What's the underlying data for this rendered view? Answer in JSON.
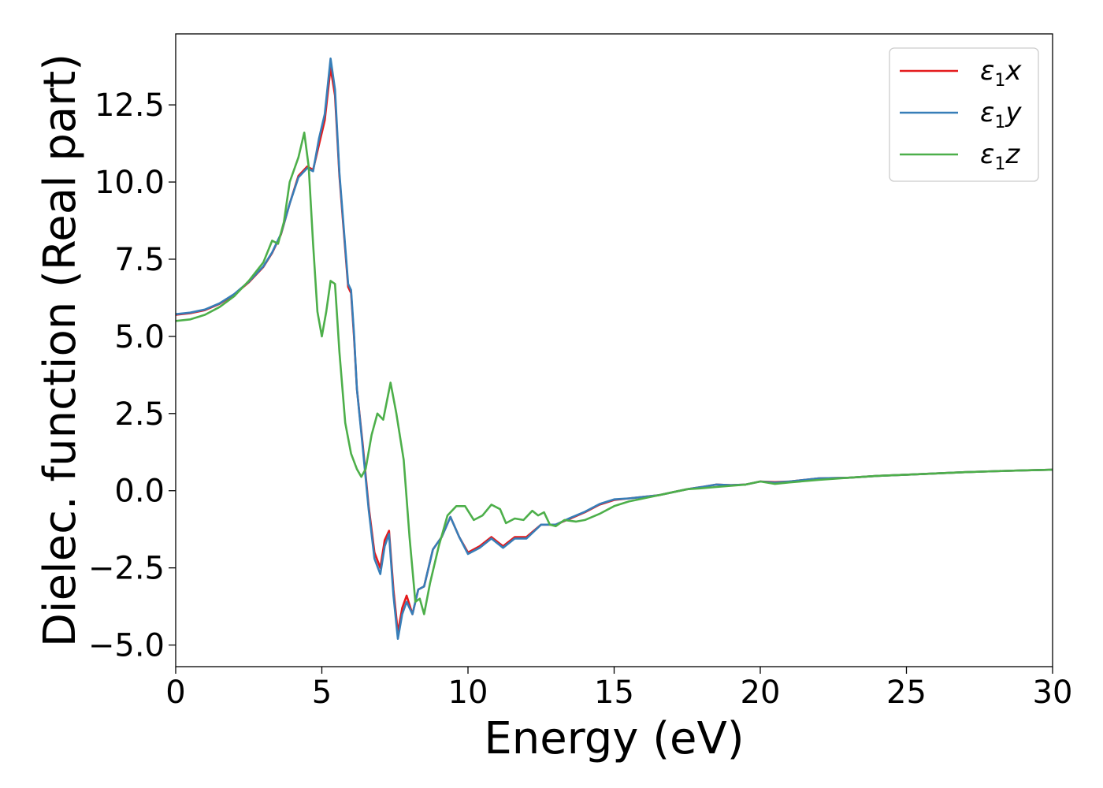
{
  "chart_data": {
    "type": "line",
    "xlabel": "Energy (eV)",
    "ylabel": "Dielec. function (Real part)",
    "xlim": [
      0,
      30
    ],
    "ylim": [
      -5.7,
      14.8
    ],
    "xticks": [
      0,
      5,
      10,
      15,
      20,
      25,
      30
    ],
    "xtick_labels": [
      "0",
      "5",
      "10",
      "15",
      "20",
      "25",
      "30"
    ],
    "yticks": [
      -5.0,
      -2.5,
      0.0,
      2.5,
      5.0,
      7.5,
      10.0,
      12.5
    ],
    "ytick_labels": [
      "−5.0",
      "−2.5",
      "0.0",
      "2.5",
      "5.0",
      "7.5",
      "10.0",
      "12.5"
    ],
    "grid": false,
    "legend_position": "top-right",
    "series": [
      {
        "name": "ε1x",
        "legend_base": "ε",
        "legend_sub": "1",
        "legend_var": "x",
        "color": "#e41a1c",
        "points": [
          [
            0,
            5.7
          ],
          [
            0.5,
            5.75
          ],
          [
            1,
            5.85
          ],
          [
            1.5,
            6.05
          ],
          [
            2,
            6.35
          ],
          [
            2.5,
            6.75
          ],
          [
            3,
            7.25
          ],
          [
            3.3,
            7.7
          ],
          [
            3.6,
            8.3
          ],
          [
            3.9,
            9.3
          ],
          [
            4.2,
            10.2
          ],
          [
            4.5,
            10.5
          ],
          [
            4.7,
            10.4
          ],
          [
            4.9,
            11.2
          ],
          [
            5.1,
            12.0
          ],
          [
            5.3,
            13.7
          ],
          [
            5.45,
            12.8
          ],
          [
            5.6,
            10.2
          ],
          [
            5.8,
            7.8
          ],
          [
            5.9,
            6.6
          ],
          [
            6.0,
            6.4
          ],
          [
            6.1,
            5.0
          ],
          [
            6.2,
            3.3
          ],
          [
            6.4,
            1.5
          ],
          [
            6.6,
            -0.5
          ],
          [
            6.8,
            -2.0
          ],
          [
            7.0,
            -2.5
          ],
          [
            7.15,
            -1.6
          ],
          [
            7.3,
            -1.3
          ],
          [
            7.45,
            -3.2
          ],
          [
            7.6,
            -4.6
          ],
          [
            7.75,
            -3.8
          ],
          [
            7.9,
            -3.4
          ],
          [
            8.1,
            -4.0
          ],
          [
            8.3,
            -3.2
          ],
          [
            8.5,
            -3.1
          ],
          [
            8.8,
            -1.9
          ],
          [
            9.1,
            -1.5
          ],
          [
            9.4,
            -0.85
          ],
          [
            9.7,
            -1.5
          ],
          [
            10.0,
            -2.0
          ],
          [
            10.4,
            -1.8
          ],
          [
            10.8,
            -1.5
          ],
          [
            11.2,
            -1.8
          ],
          [
            11.6,
            -1.5
          ],
          [
            12.0,
            -1.5
          ],
          [
            12.5,
            -1.1
          ],
          [
            13.0,
            -1.1
          ],
          [
            13.5,
            -0.9
          ],
          [
            14.0,
            -0.7
          ],
          [
            14.5,
            -0.45
          ],
          [
            15.0,
            -0.3
          ],
          [
            15.5,
            -0.25
          ],
          [
            16.0,
            -0.2
          ],
          [
            16.5,
            -0.15
          ],
          [
            17.0,
            -0.05
          ],
          [
            17.5,
            0.05
          ],
          [
            18.0,
            0.12
          ],
          [
            18.5,
            0.2
          ],
          [
            19.0,
            0.18
          ],
          [
            19.5,
            0.2
          ],
          [
            20.0,
            0.3
          ],
          [
            20.5,
            0.28
          ],
          [
            21.0,
            0.3
          ],
          [
            22.0,
            0.4
          ],
          [
            23.0,
            0.42
          ],
          [
            24.0,
            0.48
          ],
          [
            25.0,
            0.52
          ],
          [
            26.0,
            0.56
          ],
          [
            27.0,
            0.6
          ],
          [
            28.0,
            0.63
          ],
          [
            29.0,
            0.66
          ],
          [
            30.0,
            0.68
          ]
        ]
      },
      {
        "name": "ε1y",
        "legend_base": "ε",
        "legend_sub": "1",
        "legend_var": "y",
        "color": "#377eb8",
        "points": [
          [
            0,
            5.72
          ],
          [
            0.5,
            5.77
          ],
          [
            1,
            5.87
          ],
          [
            1.5,
            6.07
          ],
          [
            2,
            6.37
          ],
          [
            2.5,
            6.77
          ],
          [
            3,
            7.27
          ],
          [
            3.3,
            7.72
          ],
          [
            3.6,
            8.32
          ],
          [
            3.9,
            9.3
          ],
          [
            4.2,
            10.15
          ],
          [
            4.5,
            10.45
          ],
          [
            4.7,
            10.35
          ],
          [
            4.9,
            11.4
          ],
          [
            5.1,
            12.2
          ],
          [
            5.3,
            14.0
          ],
          [
            5.45,
            13.0
          ],
          [
            5.6,
            10.3
          ],
          [
            5.8,
            7.9
          ],
          [
            5.9,
            6.7
          ],
          [
            6.0,
            6.5
          ],
          [
            6.1,
            5.1
          ],
          [
            6.2,
            3.3
          ],
          [
            6.4,
            1.4
          ],
          [
            6.6,
            -0.6
          ],
          [
            6.8,
            -2.2
          ],
          [
            7.0,
            -2.7
          ],
          [
            7.15,
            -1.8
          ],
          [
            7.3,
            -1.4
          ],
          [
            7.45,
            -3.4
          ],
          [
            7.6,
            -4.8
          ],
          [
            7.75,
            -4.0
          ],
          [
            7.9,
            -3.6
          ],
          [
            8.1,
            -4.0
          ],
          [
            8.3,
            -3.2
          ],
          [
            8.5,
            -3.1
          ],
          [
            8.8,
            -1.9
          ],
          [
            9.1,
            -1.5
          ],
          [
            9.4,
            -0.85
          ],
          [
            9.7,
            -1.5
          ],
          [
            10.0,
            -2.05
          ],
          [
            10.4,
            -1.85
          ],
          [
            10.8,
            -1.55
          ],
          [
            11.2,
            -1.85
          ],
          [
            11.6,
            -1.55
          ],
          [
            12.0,
            -1.55
          ],
          [
            12.5,
            -1.1
          ],
          [
            13.0,
            -1.1
          ],
          [
            13.5,
            -0.88
          ],
          [
            14.0,
            -0.68
          ],
          [
            14.5,
            -0.43
          ],
          [
            15.0,
            -0.28
          ],
          [
            15.5,
            -0.25
          ],
          [
            16.0,
            -0.2
          ],
          [
            16.5,
            -0.15
          ],
          [
            17.0,
            -0.05
          ],
          [
            17.5,
            0.05
          ],
          [
            18.0,
            0.12
          ],
          [
            18.5,
            0.2
          ],
          [
            19.0,
            0.18
          ],
          [
            19.5,
            0.2
          ],
          [
            20.0,
            0.3
          ],
          [
            20.5,
            0.26
          ],
          [
            21.0,
            0.3
          ],
          [
            22.0,
            0.4
          ],
          [
            23.0,
            0.42
          ],
          [
            24.0,
            0.48
          ],
          [
            25.0,
            0.52
          ],
          [
            26.0,
            0.56
          ],
          [
            27.0,
            0.6
          ],
          [
            28.0,
            0.63
          ],
          [
            29.0,
            0.66
          ],
          [
            30.0,
            0.68
          ]
        ]
      },
      {
        "name": "ε1z",
        "legend_base": "ε",
        "legend_sub": "1",
        "legend_var": "z",
        "color": "#4daf4a",
        "points": [
          [
            0,
            5.5
          ],
          [
            0.5,
            5.55
          ],
          [
            1,
            5.7
          ],
          [
            1.5,
            5.95
          ],
          [
            2,
            6.3
          ],
          [
            2.5,
            6.8
          ],
          [
            3,
            7.4
          ],
          [
            3.3,
            8.1
          ],
          [
            3.5,
            8.0
          ],
          [
            3.7,
            8.7
          ],
          [
            3.9,
            10.0
          ],
          [
            4.2,
            10.8
          ],
          [
            4.4,
            11.6
          ],
          [
            4.55,
            10.5
          ],
          [
            4.7,
            8.0
          ],
          [
            4.85,
            5.8
          ],
          [
            5.0,
            5.0
          ],
          [
            5.15,
            5.8
          ],
          [
            5.3,
            6.8
          ],
          [
            5.45,
            6.7
          ],
          [
            5.6,
            4.5
          ],
          [
            5.8,
            2.2
          ],
          [
            6.0,
            1.2
          ],
          [
            6.2,
            0.7
          ],
          [
            6.35,
            0.45
          ],
          [
            6.5,
            0.7
          ],
          [
            6.7,
            1.8
          ],
          [
            6.9,
            2.5
          ],
          [
            7.1,
            2.3
          ],
          [
            7.35,
            3.5
          ],
          [
            7.55,
            2.5
          ],
          [
            7.8,
            1.0
          ],
          [
            8.0,
            -1.5
          ],
          [
            8.2,
            -3.6
          ],
          [
            8.35,
            -3.5
          ],
          [
            8.5,
            -4.0
          ],
          [
            8.7,
            -3.0
          ],
          [
            9.0,
            -1.8
          ],
          [
            9.3,
            -0.8
          ],
          [
            9.6,
            -0.5
          ],
          [
            9.9,
            -0.5
          ],
          [
            10.2,
            -0.95
          ],
          [
            10.5,
            -0.8
          ],
          [
            10.8,
            -0.45
          ],
          [
            11.1,
            -0.6
          ],
          [
            11.3,
            -1.05
          ],
          [
            11.6,
            -0.9
          ],
          [
            11.9,
            -0.95
          ],
          [
            12.2,
            -0.65
          ],
          [
            12.4,
            -0.8
          ],
          [
            12.6,
            -0.7
          ],
          [
            12.8,
            -1.1
          ],
          [
            13.0,
            -1.15
          ],
          [
            13.3,
            -0.95
          ],
          [
            13.7,
            -1.0
          ],
          [
            14.0,
            -0.95
          ],
          [
            14.5,
            -0.75
          ],
          [
            15.0,
            -0.5
          ],
          [
            15.5,
            -0.35
          ],
          [
            16.0,
            -0.25
          ],
          [
            16.5,
            -0.15
          ],
          [
            17.0,
            -0.05
          ],
          [
            17.5,
            0.05
          ],
          [
            18.0,
            0.08
          ],
          [
            18.5,
            0.12
          ],
          [
            19.0,
            0.16
          ],
          [
            19.5,
            0.2
          ],
          [
            20.0,
            0.3
          ],
          [
            20.5,
            0.22
          ],
          [
            21.0,
            0.27
          ],
          [
            22.0,
            0.35
          ],
          [
            23.0,
            0.42
          ],
          [
            24.0,
            0.48
          ],
          [
            25.0,
            0.52
          ],
          [
            26.0,
            0.56
          ],
          [
            27.0,
            0.6
          ],
          [
            28.0,
            0.63
          ],
          [
            29.0,
            0.66
          ],
          [
            30.0,
            0.68
          ]
        ]
      }
    ]
  }
}
